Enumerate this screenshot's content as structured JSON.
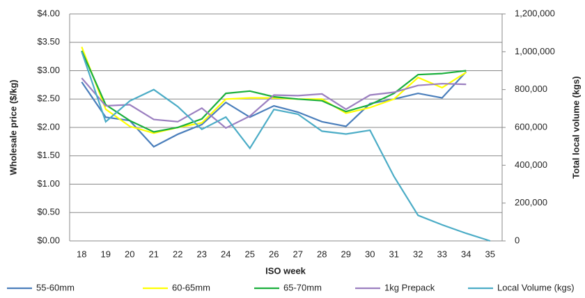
{
  "chart_data": {
    "type": "line",
    "x_label": "ISO week",
    "y_label": "Wholesale price ($/kg)",
    "y2_label": "Total local volume (kgs)",
    "categories": [
      "18",
      "19",
      "20",
      "21",
      "22",
      "23",
      "24",
      "25",
      "26",
      "27",
      "28",
      "29",
      "30",
      "31",
      "32",
      "33",
      "34",
      "35"
    ],
    "ylim": [
      0,
      4
    ],
    "yticks": [
      {
        "value": 0,
        "label": "$0.00"
      },
      {
        "value": 0.5,
        "label": "$0.50"
      },
      {
        "value": 1,
        "label": "$1.00"
      },
      {
        "value": 1.5,
        "label": "$1.50"
      },
      {
        "value": 2,
        "label": "$2.00"
      },
      {
        "value": 2.5,
        "label": "$2.50"
      },
      {
        "value": 3,
        "label": "$3.00"
      },
      {
        "value": 3.5,
        "label": "$3.50"
      },
      {
        "value": 4,
        "label": "$4.00"
      }
    ],
    "y2lim": [
      0,
      1200000
    ],
    "y2ticks": [
      0,
      {
        "value": 200000,
        "label": "200,000"
      },
      {
        "value": 400000,
        "label": "400,000"
      },
      {
        "value": 600000,
        "label": "600,000"
      },
      {
        "value": 800000,
        "label": "800,000"
      },
      {
        "value": 1000000,
        "label": "1,000,000"
      },
      {
        "value": 1200000,
        "label": "1,200,000"
      }
    ],
    "grid": true,
    "legend": "bottom",
    "series": [
      {
        "name": "55-60mm",
        "color": "#4a7ebb",
        "values": [
          2.8,
          2.18,
          2.12,
          1.66,
          1.88,
          2.05,
          2.44,
          2.18,
          2.38,
          2.27,
          2.1,
          2.02,
          2.42,
          2.5,
          2.6,
          2.52,
          2.98,
          null
        ]
      },
      {
        "name": "60-65mm",
        "color": "#ffff00",
        "values": [
          3.42,
          2.32,
          2.02,
          1.9,
          2.0,
          2.08,
          2.5,
          2.52,
          2.52,
          2.5,
          2.5,
          2.25,
          2.35,
          2.5,
          2.88,
          2.7,
          2.97,
          null
        ]
      },
      {
        "name": "65-70mm",
        "color": "#1aaf3c",
        "values": [
          3.35,
          2.4,
          2.12,
          1.92,
          2.0,
          2.15,
          2.6,
          2.64,
          2.54,
          2.5,
          2.47,
          2.28,
          2.4,
          2.6,
          2.93,
          2.95,
          3.0,
          null
        ]
      },
      {
        "name": "1kg Prepack",
        "color": "#9b7fc0",
        "values": [
          2.87,
          2.38,
          2.4,
          2.14,
          2.1,
          2.34,
          1.99,
          2.2,
          2.57,
          2.56,
          2.59,
          2.32,
          2.57,
          2.62,
          2.74,
          2.77,
          2.76,
          null
        ]
      },
      {
        "name": "Local Volume (kgs)",
        "color": "#4bacc6",
        "axis": "y2",
        "values": [
          1000000,
          630000,
          740000,
          800000,
          710000,
          590000,
          655000,
          490000,
          695000,
          670000,
          580000,
          565000,
          585000,
          340000,
          135000,
          85000,
          40000,
          0
        ]
      }
    ]
  }
}
